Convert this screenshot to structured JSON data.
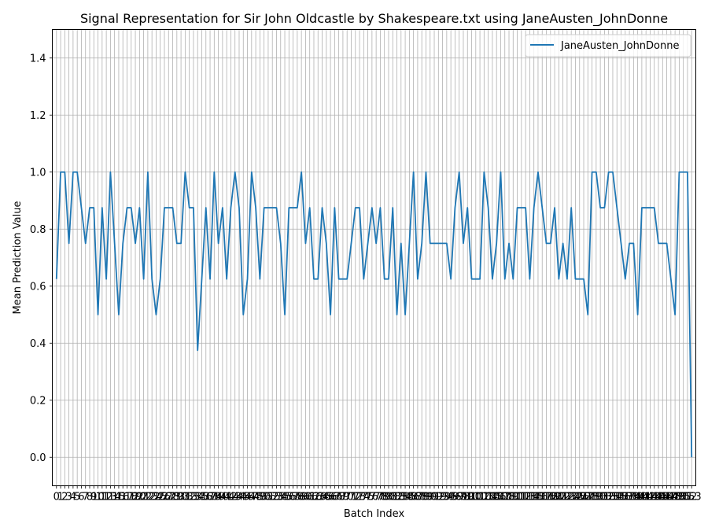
{
  "chart_data": {
    "type": "line",
    "title": "Signal Representation for Sir John Oldcastle by Shakespeare.txt using JaneAusten_JohnDonne",
    "xlabel": "Batch Index",
    "ylabel": "Mean Prediction Value",
    "xlim": [
      -1,
      154
    ],
    "ylim": [
      -0.1,
      1.5
    ],
    "yticks": [
      0.0,
      0.2,
      0.4,
      0.6,
      0.8,
      1.0,
      1.2,
      1.4
    ],
    "ytick_labels": [
      "0.0",
      "0.2",
      "0.4",
      "0.6",
      "0.8",
      "1.0",
      "1.2",
      "1.4"
    ],
    "xticks_every": 1,
    "grid": true,
    "legend_position": "top-right",
    "series": [
      {
        "name": "JaneAusten_JohnDonne",
        "color": "#1f77b4",
        "x_start": 0,
        "values": [
          0.625,
          1.0,
          1.0,
          0.75,
          1.0,
          1.0,
          0.875,
          0.75,
          0.875,
          0.875,
          0.5,
          0.875,
          0.625,
          1.0,
          0.75,
          0.5,
          0.75,
          0.875,
          0.875,
          0.75,
          0.875,
          0.625,
          1.0,
          0.625,
          0.5,
          0.625,
          0.875,
          0.875,
          0.875,
          0.75,
          0.75,
          1.0,
          0.875,
          0.875,
          0.375,
          0.625,
          0.875,
          0.625,
          1.0,
          0.75,
          0.875,
          0.625,
          0.875,
          1.0,
          0.875,
          0.5,
          0.625,
          1.0,
          0.875,
          0.625,
          0.875,
          0.875,
          0.875,
          0.875,
          0.75,
          0.5,
          0.875,
          0.875,
          0.875,
          1.0,
          0.75,
          0.875,
          0.625,
          0.625,
          0.875,
          0.75,
          0.5,
          0.875,
          0.625,
          0.625,
          0.625,
          0.75,
          0.875,
          0.875,
          0.625,
          0.75,
          0.875,
          0.75,
          0.875,
          0.625,
          0.625,
          0.875,
          0.5,
          0.75,
          0.5,
          0.75,
          1.0,
          0.625,
          0.75,
          1.0,
          0.75,
          0.75,
          0.75,
          0.75,
          0.75,
          0.625,
          0.875,
          1.0,
          0.75,
          0.875,
          0.625,
          0.625,
          0.625,
          1.0,
          0.875,
          0.625,
          0.75,
          1.0,
          0.625,
          0.75,
          0.625,
          0.875,
          0.875,
          0.875,
          0.625,
          0.875,
          1.0,
          0.875,
          0.75,
          0.75,
          0.875,
          0.625,
          0.75,
          0.625,
          0.875,
          0.625,
          0.625,
          0.625,
          0.5,
          1.0,
          1.0,
          0.875,
          0.875,
          1.0,
          1.0,
          0.875,
          0.75,
          0.625,
          0.75,
          0.75,
          0.5,
          0.875,
          0.875,
          0.875,
          0.875,
          0.75,
          0.75,
          0.75,
          0.625,
          0.5,
          1.0,
          1.0,
          1.0,
          0.0
        ]
      }
    ]
  }
}
